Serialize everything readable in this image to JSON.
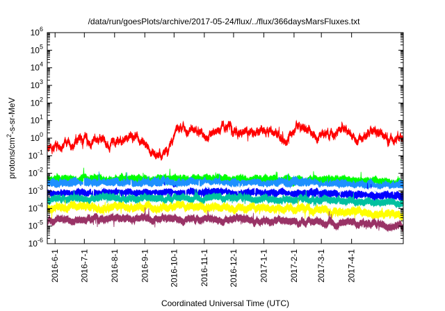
{
  "chart_data": {
    "type": "line",
    "title": "/data/run/goesPlots/archive/2017-05-24/flux/../flux/366daysMarsFluxes.txt",
    "xlabel": "Coordinated Universal Time (UTC)",
    "ylabel_parts": [
      "protons/cm",
      "2",
      "-s-sr-MeV"
    ],
    "y_scale": "log",
    "ylim": [
      1e-06,
      1000000.0
    ],
    "y_ticks": [
      {
        "base": "10",
        "exp": "-6"
      },
      {
        "base": "10",
        "exp": "-5"
      },
      {
        "base": "10",
        "exp": "-4"
      },
      {
        "base": "10",
        "exp": "-3"
      },
      {
        "base": "10",
        "exp": "-2"
      },
      {
        "base": "10",
        "exp": "-1"
      },
      {
        "base": "10",
        "exp": "0"
      },
      {
        "base": "10",
        "exp": "1"
      },
      {
        "base": "10",
        "exp": "2"
      },
      {
        "base": "10",
        "exp": "3"
      },
      {
        "base": "10",
        "exp": "4"
      },
      {
        "base": "10",
        "exp": "5"
      },
      {
        "base": "10",
        "exp": "6"
      }
    ],
    "x_range": [
      "2016-05-24",
      "2017-05-24"
    ],
    "x_ticks": [
      "2016-6-1",
      "2016-7-1",
      "2016-8-1",
      "2016-9-1",
      "2016-10-1",
      "2016-11-1",
      "2016-12-1",
      "2017-1-1",
      "2017-2-1",
      "2017-3-1",
      "2017-4-1"
    ],
    "x_tick_dates": [
      "2016-06-01",
      "2016-07-01",
      "2016-08-01",
      "2016-09-01",
      "2016-10-01",
      "2016-11-01",
      "2016-12-01",
      "2017-01-01",
      "2017-02-01",
      "2017-03-01",
      "2017-04-01"
    ],
    "grid": false,
    "legend": "none",
    "series": [
      {
        "color": "#ff0000",
        "noise": 0.28,
        "thickness": 0.22,
        "x": [
          "2016-05-24",
          "2016-06-15",
          "2016-07-05",
          "2016-07-25",
          "2016-08-15",
          "2016-09-01",
          "2016-09-15",
          "2016-09-25",
          "2016-10-05",
          "2016-10-20",
          "2016-11-05",
          "2016-11-20",
          "2016-12-05",
          "2016-12-20",
          "2017-01-05",
          "2017-01-20",
          "2017-02-05",
          "2017-02-20",
          "2017-03-05",
          "2017-03-25",
          "2017-04-10",
          "2017-04-25",
          "2017-05-10",
          "2017-05-24"
        ],
        "y": [
          0.3,
          0.5,
          0.8,
          0.6,
          1.0,
          0.5,
          0.1,
          0.15,
          5,
          2,
          1.5,
          4,
          2,
          1.5,
          3,
          0.6,
          4,
          2,
          1.5,
          3,
          1.0,
          1.8,
          1.2,
          1.2
        ]
      },
      {
        "color": "#00ff00",
        "noise": 0.12,
        "thickness": 0.35,
        "x": [
          "2016-05-24",
          "2016-08-01",
          "2016-11-01",
          "2017-02-01",
          "2017-05-24"
        ],
        "y": [
          0.004,
          0.0045,
          0.0045,
          0.0042,
          0.003
        ]
      },
      {
        "color": "#1e90ff",
        "noise": 0.12,
        "thickness": 0.4,
        "x": [
          "2016-05-24",
          "2016-08-01",
          "2016-11-01",
          "2017-02-01",
          "2017-05-24"
        ],
        "y": [
          0.0025,
          0.0028,
          0.0028,
          0.0026,
          0.0018
        ]
      },
      {
        "color": "#ffffff",
        "noise": 0.1,
        "thickness": 0.15,
        "x": [
          "2016-05-24",
          "2016-08-01",
          "2016-11-01",
          "2017-02-01",
          "2017-05-24"
        ],
        "y": [
          0.0015,
          0.0016,
          0.0016,
          0.0015,
          0.0011
        ]
      },
      {
        "color": "#0000ff",
        "noise": 0.12,
        "thickness": 0.35,
        "x": [
          "2016-05-24",
          "2016-08-01",
          "2016-11-01",
          "2017-02-01",
          "2017-05-24"
        ],
        "y": [
          0.0008,
          0.0009,
          0.0009,
          0.0008,
          0.0005
        ]
      },
      {
        "color": "#00c0a0",
        "noise": 0.12,
        "thickness": 0.3,
        "x": [
          "2016-05-24",
          "2016-08-01",
          "2016-11-01",
          "2017-02-01",
          "2017-05-24"
        ],
        "y": [
          0.00035,
          0.0004,
          0.0004,
          0.00035,
          0.00022
        ]
      },
      {
        "color": "#ffff00",
        "noise": 0.14,
        "thickness": 0.32,
        "x": [
          "2016-05-24",
          "2016-08-01",
          "2016-11-01",
          "2017-02-01",
          "2017-05-24"
        ],
        "y": [
          0.0001,
          0.00012,
          0.00012,
          0.0001,
          4e-05
        ]
      },
      {
        "color": "#993366",
        "noise": 0.14,
        "thickness": 0.3,
        "x": [
          "2016-05-24",
          "2016-08-01",
          "2016-11-01",
          "2017-02-01",
          "2017-05-24"
        ],
        "y": [
          2e-05,
          2.5e-05,
          2.5e-05,
          2e-05,
          1e-05
        ]
      }
    ]
  }
}
